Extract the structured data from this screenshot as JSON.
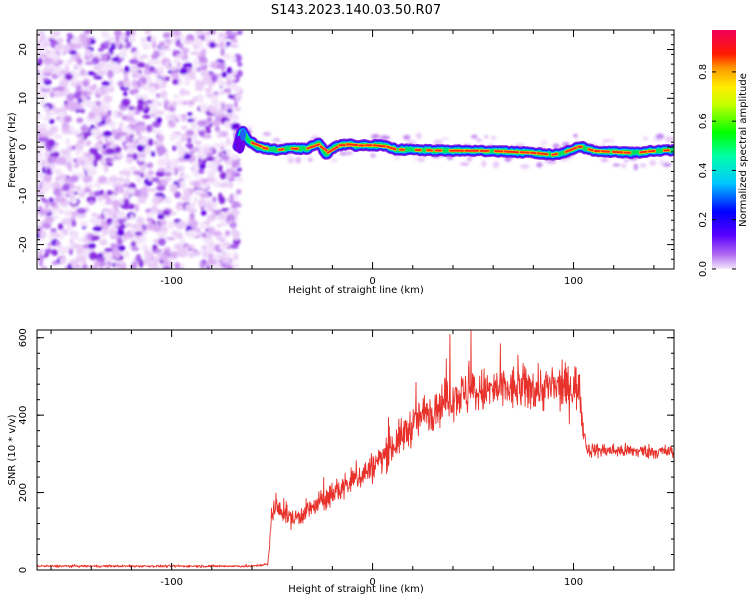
{
  "title": "S143.2023.140.03.50.R07",
  "colors": {
    "snr_line": "#e8312b",
    "axes": "#000000"
  },
  "chart_data": [
    {
      "id": "spectrogram",
      "type": "heatmap",
      "xlabel": "Height of straight line (km)",
      "ylabel": "Frequency (Hz)",
      "xlim": [
        -167,
        150
      ],
      "ylim": [
        -25,
        24
      ],
      "x_ticks": [
        {
          "v": -100,
          "label": "-100"
        },
        {
          "v": 0,
          "label": "0"
        },
        {
          "v": 100,
          "label": "100"
        }
      ],
      "y_ticks": [
        {
          "v": -20,
          "label": "-20"
        },
        {
          "v": -10,
          "label": "-10"
        },
        {
          "v": 0,
          "label": "0"
        },
        {
          "v": 10,
          "label": "10"
        },
        {
          "v": 20,
          "label": "20"
        }
      ],
      "colorbar": {
        "label": "Normalized spectral amplitude",
        "range": [
          0.0,
          0.97
        ],
        "colormap": "hsv-rainbow (violet→blue→cyan→green→yellow→red→magenta)",
        "ticks": [
          {
            "v": 0.0,
            "label": "0.0"
          },
          {
            "v": 0.2,
            "label": "0.2"
          },
          {
            "v": 0.4,
            "label": "0.4"
          },
          {
            "v": 0.6,
            "label": "0.6"
          },
          {
            "v": 0.8,
            "label": "0.8"
          }
        ]
      },
      "noise_region_x": [
        -167,
        -66
      ],
      "trace_x_start": -67,
      "trace_profile": [
        {
          "x": -67,
          "f": 0.0
        },
        {
          "x": -65,
          "f": 3.5
        },
        {
          "x": -62,
          "f": 1.5
        },
        {
          "x": -57,
          "f": 0.0
        },
        {
          "x": -48,
          "f": -0.6
        },
        {
          "x": -40,
          "f": -0.3
        },
        {
          "x": -33,
          "f": -0.4
        },
        {
          "x": -27,
          "f": 0.8
        },
        {
          "x": -23,
          "f": -1.4
        },
        {
          "x": -18,
          "f": 0.3
        },
        {
          "x": -13,
          "f": 0.6
        },
        {
          "x": -8,
          "f": 0.3
        },
        {
          "x": -2,
          "f": 0.4
        },
        {
          "x": 5,
          "f": 0.3
        },
        {
          "x": 12,
          "f": -0.5
        },
        {
          "x": 30,
          "f": -0.7
        },
        {
          "x": 60,
          "f": -0.8
        },
        {
          "x": 80,
          "f": -1.2
        },
        {
          "x": 90,
          "f": -1.6
        },
        {
          "x": 98,
          "f": -0.8
        },
        {
          "x": 103,
          "f": 0.2
        },
        {
          "x": 110,
          "f": -0.8
        },
        {
          "x": 130,
          "f": -1.2
        },
        {
          "x": 140,
          "f": -0.8
        },
        {
          "x": 150,
          "f": -0.6
        }
      ]
    },
    {
      "id": "snr",
      "type": "line",
      "xlabel": "Height of straight line (km)",
      "ylabel": "SNR (10 * v/v)",
      "xlim": [
        -167,
        150
      ],
      "ylim": [
        0,
        620
      ],
      "x_ticks": [
        {
          "v": -100,
          "label": "-100"
        },
        {
          "v": 0,
          "label": "0"
        },
        {
          "v": 100,
          "label": "100"
        }
      ],
      "y_ticks": [
        {
          "v": 0,
          "label": "0"
        },
        {
          "v": 200,
          "label": "200"
        },
        {
          "v": 400,
          "label": "400"
        },
        {
          "v": 600,
          "label": "600"
        }
      ],
      "baseline_trend": [
        {
          "x": -167,
          "y": 10
        },
        {
          "x": -60,
          "y": 10
        },
        {
          "x": -52,
          "y": 15
        },
        {
          "x": -50,
          "y": 160
        },
        {
          "x": -44,
          "y": 150
        },
        {
          "x": -40,
          "y": 130
        },
        {
          "x": -30,
          "y": 160
        },
        {
          "x": -20,
          "y": 195
        },
        {
          "x": -10,
          "y": 230
        },
        {
          "x": 0,
          "y": 265
        },
        {
          "x": 10,
          "y": 320
        },
        {
          "x": 20,
          "y": 375
        },
        {
          "x": 25,
          "y": 400
        },
        {
          "x": 40,
          "y": 450
        },
        {
          "x": 60,
          "y": 465
        },
        {
          "x": 80,
          "y": 470
        },
        {
          "x": 95,
          "y": 470
        },
        {
          "x": 103,
          "y": 475
        },
        {
          "x": 105,
          "y": 360
        },
        {
          "x": 107,
          "y": 310
        },
        {
          "x": 150,
          "y": 305
        }
      ],
      "peak": {
        "x": 49,
        "y": 620
      }
    }
  ]
}
